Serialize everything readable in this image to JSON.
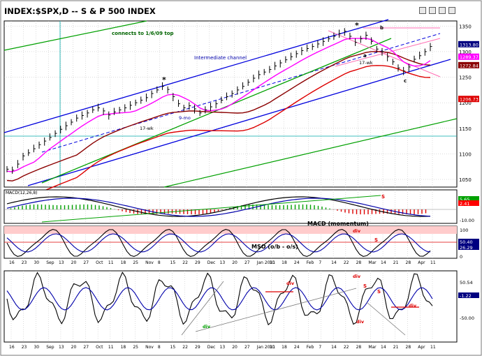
{
  "window": {
    "title": "INDEX:$SPX,D -- S & P 500 INDEX",
    "buttons": [
      "minimize-icon",
      "restore-icon",
      "maximize-icon",
      "close-icon"
    ]
  },
  "colors": {
    "price": "#000000",
    "blue_channel": "#0000dd",
    "green_trend": "#00a000",
    "dark_green": "#006400",
    "maroon_ma": "#8b0000",
    "red_ma": "#dd0000",
    "magenta_ma": "#ff00ff",
    "pink": "#ff6eb4",
    "macd_band": "#ffcccc",
    "grid": "#b8b8b8",
    "panel_border": "#000000"
  },
  "annotations": {
    "top_note": "connects to 1/6/09 top",
    "channel": "Intermediate channel",
    "wk17_left": "17-wk",
    "wk17_right": "17-wk",
    "ma9": "9-mo",
    "star1": "*",
    "star2": "*",
    "label_a": "a",
    "label_b": "b",
    "label_c": "c",
    "macd_title": "MACD (momentum)",
    "mso_title": "MSO (o/b - o/s)",
    "div_labels": [
      "div",
      "div",
      "div",
      "div",
      "div",
      "div"
    ],
    "s_labels": [
      "S",
      "S",
      "S",
      "S"
    ]
  },
  "chart_data": [
    {
      "type": "line",
      "panel": "price",
      "title": "INDEX:$SPX,D -- S & P 500 INDEX",
      "yticks": [
        1050,
        1100,
        1150,
        1200,
        1250,
        1300,
        1350
      ],
      "ylim": [
        1035,
        1360
      ],
      "price_labels": [
        {
          "value": "1313.80"
        },
        {
          "value": "1289.37"
        },
        {
          "value": "1272.84"
        },
        {
          "value": "1206.73"
        }
      ],
      "series_close": [
        1070,
        1068,
        1080,
        1096,
        1102,
        1110,
        1118,
        1125,
        1132,
        1140,
        1148,
        1155,
        1162,
        1170,
        1175,
        1180,
        1186,
        1190,
        1184,
        1176,
        1182,
        1186,
        1190,
        1195,
        1200,
        1205,
        1210,
        1218,
        1225,
        1232,
        1226,
        1212,
        1198,
        1190,
        1194,
        1188,
        1180,
        1186,
        1192,
        1198,
        1205,
        1212,
        1218,
        1225,
        1232,
        1240,
        1248,
        1255,
        1260,
        1265,
        1272,
        1278,
        1284,
        1290,
        1296,
        1302,
        1306,
        1310,
        1315,
        1320,
        1325,
        1330,
        1335,
        1340,
        1330,
        1318,
        1325,
        1332,
        1320,
        1305,
        1300,
        1290,
        1280,
        1268,
        1262,
        1270,
        1285,
        1292,
        1300,
        1310
      ]
    },
    {
      "type": "line",
      "panel": "macd",
      "name": "MACD(12,26,8)",
      "yticks_labels": [
        "5.65",
        "2.41",
        "-10.00"
      ],
      "ylim": [
        -15,
        15
      ]
    },
    {
      "type": "line",
      "panel": "mso",
      "yticks_labels": [
        "100",
        "50.40",
        "26.29",
        "0"
      ],
      "ylim": [
        0,
        110
      ]
    },
    {
      "type": "line",
      "panel": "oscillator",
      "yticks_labels": [
        "50.54",
        "-1.22",
        "-50.00"
      ],
      "ylim": [
        -90,
        70
      ]
    }
  ],
  "x_axis": {
    "ticks": [
      "16",
      "23",
      "30",
      "Sep",
      "13",
      "20",
      "27",
      "Oct",
      "11",
      "18",
      "25",
      "Nov",
      "8",
      "15",
      "22",
      "29",
      "Dec",
      "13",
      "20",
      "27",
      "Jan 2011",
      "10",
      "18",
      "24",
      "Feb",
      "7",
      "14",
      "22",
      "28",
      "Mar",
      "14",
      "21",
      "28",
      "Apr",
      "11"
    ]
  }
}
